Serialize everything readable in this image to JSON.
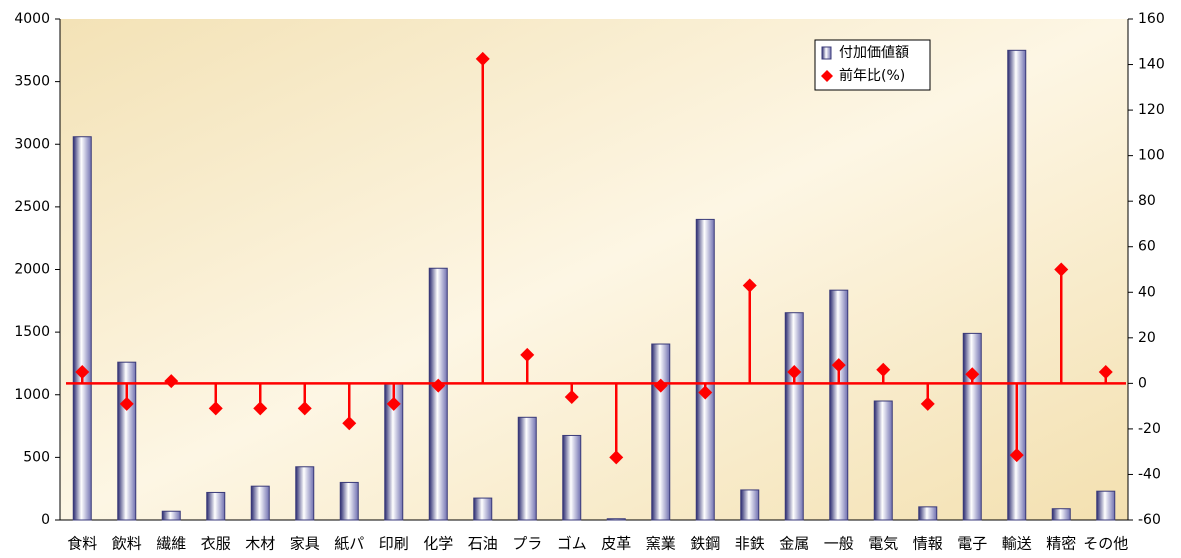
{
  "chart_data": {
    "type": "bar",
    "categories": [
      "食料",
      "飲料",
      "繊維",
      "衣服",
      "木材",
      "家具",
      "紙パ",
      "印刷",
      "化学",
      "石油",
      "プラ",
      "ゴム",
      "皮革",
      "窯業",
      "鉄鋼",
      "非鉄",
      "金属",
      "一般",
      "電気",
      "情報",
      "電子",
      "輸送",
      "精密",
      "その他"
    ],
    "series": [
      {
        "name": "付加価値額",
        "color": "#3a3a78",
        "values": [
          3060,
          1260,
          70,
          220,
          270,
          425,
          300,
          1090,
          2010,
          175,
          820,
          675,
          10,
          1405,
          2400,
          240,
          1655,
          1835,
          950,
          105,
          1490,
          3750,
          90,
          230
        ]
      },
      {
        "name": "前年比(%)",
        "color": "#ff0000",
        "axis": "y2",
        "marker": "diamond",
        "values": [
          5,
          -9,
          1,
          -11,
          -11,
          -11,
          -17.5,
          -9,
          -1,
          142.5,
          12.5,
          -6,
          -32.5,
          -1,
          -4,
          43,
          5,
          8,
          6,
          -9,
          4,
          -31.5,
          50,
          5
        ]
      }
    ],
    "ylim": [
      0,
      4000
    ],
    "yticks": [
      0,
      500,
      1000,
      1500,
      2000,
      2500,
      3000,
      3500,
      4000
    ],
    "y2lim": [
      -60,
      160
    ],
    "y2ticks": [
      -60,
      -40,
      -20,
      0,
      20,
      40,
      60,
      80,
      100,
      120,
      140,
      160
    ],
    "legend": "upper right"
  }
}
